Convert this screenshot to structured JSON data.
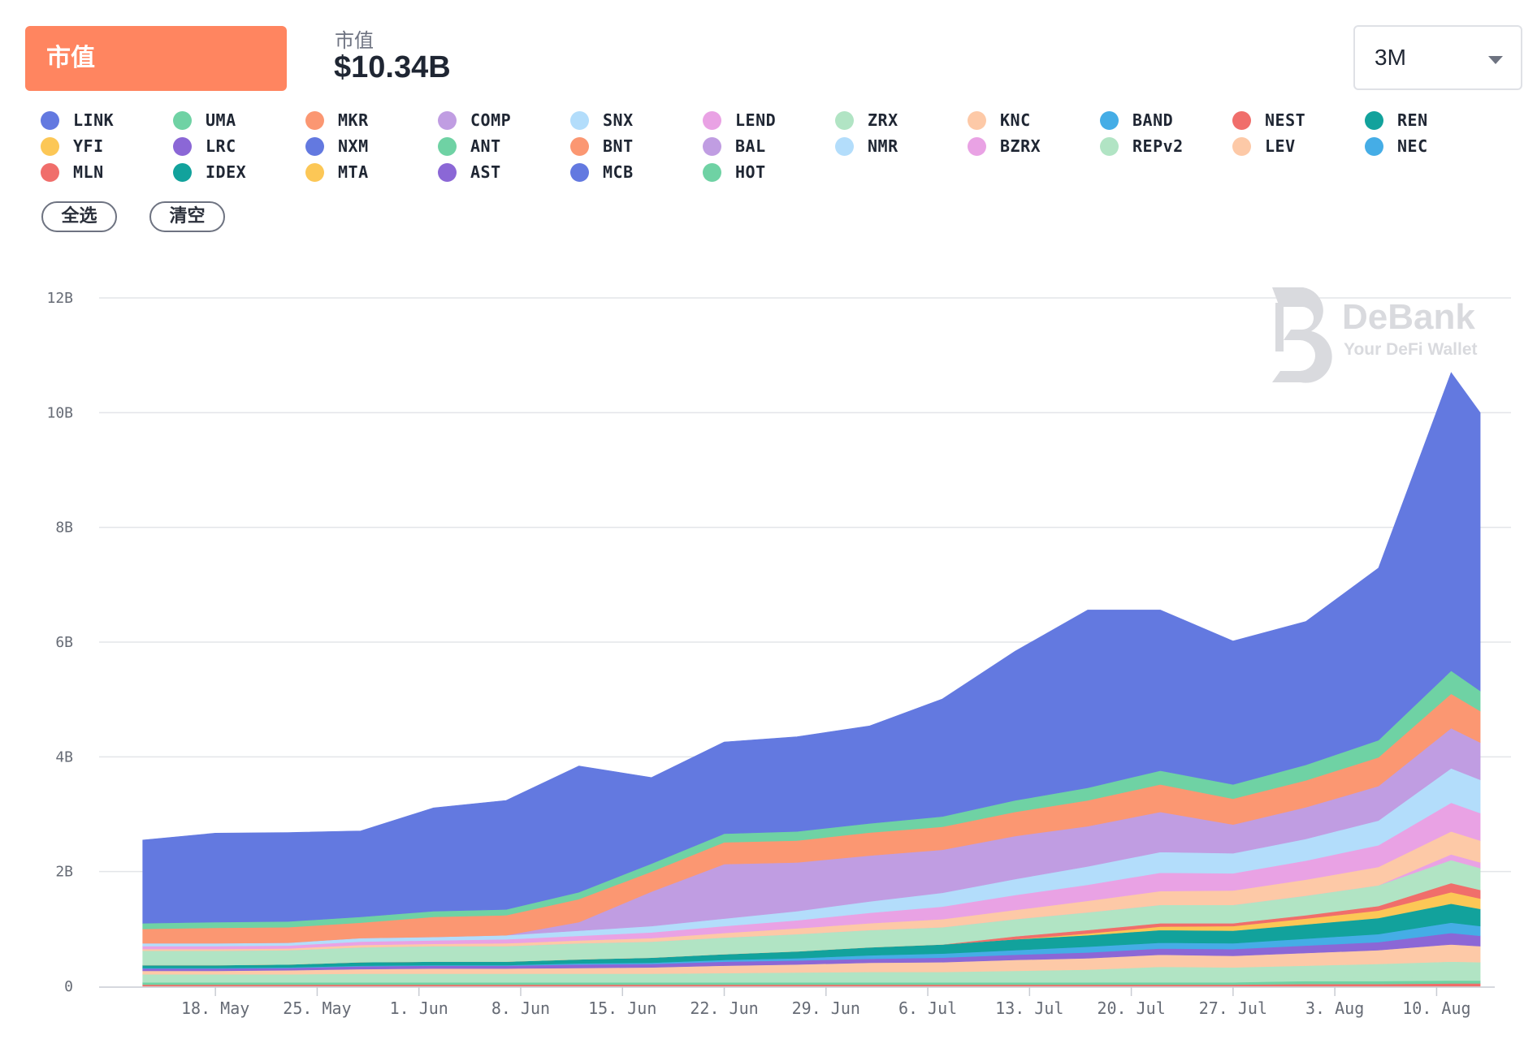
{
  "header": {
    "metric_tab": "市值",
    "summary_label": "市值",
    "summary_value": "$10.34B",
    "range_value": "3M"
  },
  "actions": {
    "select_all": "全选",
    "clear": "清空"
  },
  "watermark": {
    "brand": "DeBank",
    "tagline": "Your DeFi Wallet"
  },
  "legend": [
    {
      "label": "LINK",
      "color": "#6379e0"
    },
    {
      "label": "UMA",
      "color": "#6fd2a4"
    },
    {
      "label": "MKR",
      "color": "#fb9772"
    },
    {
      "label": "COMP",
      "color": "#c09de2"
    },
    {
      "label": "SNX",
      "color": "#b3ddfb"
    },
    {
      "label": "LEND",
      "color": "#e9a2e4"
    },
    {
      "label": "ZRX",
      "color": "#b1e4c4"
    },
    {
      "label": "KNC",
      "color": "#fdc9a7"
    },
    {
      "label": "BAND",
      "color": "#45ade6"
    },
    {
      "label": "NEST",
      "color": "#f06e6b"
    },
    {
      "label": "REN",
      "color": "#12a29c"
    },
    {
      "label": "YFI",
      "color": "#fcc756"
    },
    {
      "label": "LRC",
      "color": "#8b67d6"
    },
    {
      "label": "NXM",
      "color": "#6379e0"
    },
    {
      "label": "ANT",
      "color": "#6fd2a4"
    },
    {
      "label": "BNT",
      "color": "#fb9772"
    },
    {
      "label": "BAL",
      "color": "#c09de2"
    },
    {
      "label": "NMR",
      "color": "#b3ddfb"
    },
    {
      "label": "BZRX",
      "color": "#e9a2e4"
    },
    {
      "label": "REPv2",
      "color": "#b1e4c4"
    },
    {
      "label": "LEV",
      "color": "#fdc9a7"
    },
    {
      "label": "NEC",
      "color": "#45ade6"
    },
    {
      "label": "MLN",
      "color": "#f06e6b"
    },
    {
      "label": "IDEX",
      "color": "#12a29c"
    },
    {
      "label": "MTA",
      "color": "#fcc756"
    },
    {
      "label": "AST",
      "color": "#8b67d6"
    },
    {
      "label": "MCB",
      "color": "#6379e0"
    },
    {
      "label": "HOT",
      "color": "#6fd2a4"
    }
  ],
  "chart_data": {
    "type": "area",
    "stacked": true,
    "x": [
      "2020-05-13",
      "2020-05-18",
      "2020-05-23",
      "2020-05-28",
      "2020-06-02",
      "2020-06-07",
      "2020-06-12",
      "2020-06-17",
      "2020-06-22",
      "2020-06-27",
      "2020-07-02",
      "2020-07-07",
      "2020-07-12",
      "2020-07-17",
      "2020-07-22",
      "2020-07-27",
      "2020-08-01",
      "2020-08-06",
      "2020-08-11",
      "2020-08-13"
    ],
    "xticks": [
      "18. May",
      "25. May",
      "1. Jun",
      "8. Jun",
      "15. Jun",
      "22. Jun",
      "29. Jun",
      "6. Jul",
      "13. Jul",
      "20. Jul",
      "27. Jul",
      "3. Aug",
      "10. Aug"
    ],
    "xtick_dates": [
      "2020-05-18",
      "2020-05-25",
      "2020-06-01",
      "2020-06-08",
      "2020-06-15",
      "2020-06-22",
      "2020-06-29",
      "2020-07-06",
      "2020-07-13",
      "2020-07-20",
      "2020-07-27",
      "2020-08-03",
      "2020-08-10"
    ],
    "yticks": [
      "0",
      "2B",
      "4B",
      "6B",
      "8B",
      "10B",
      "12B"
    ],
    "ylim": [
      0,
      12
    ],
    "yunit": "B",
    "grid": true,
    "series": [
      {
        "name": "MLN",
        "color": "#f06e6b",
        "values": [
          0.03,
          0.03,
          0.03,
          0.03,
          0.03,
          0.03,
          0.03,
          0.03,
          0.03,
          0.03,
          0.03,
          0.03,
          0.03,
          0.03,
          0.03,
          0.03,
          0.04,
          0.04,
          0.05,
          0.05
        ]
      },
      {
        "name": "HOT",
        "color": "#6fd2a4",
        "values": [
          0.04,
          0.04,
          0.04,
          0.04,
          0.04,
          0.04,
          0.04,
          0.04,
          0.04,
          0.04,
          0.04,
          0.04,
          0.04,
          0.04,
          0.04,
          0.04,
          0.05,
          0.05,
          0.05,
          0.05
        ]
      },
      {
        "name": "REPv2",
        "color": "#b1e4c4",
        "values": [
          0.0,
          0.0,
          0.0,
          0.0,
          0.0,
          0.0,
          0.0,
          0.0,
          0.0,
          0.0,
          0.0,
          0.0,
          0.0,
          0.0,
          0.05,
          0.05,
          0.05,
          0.06,
          0.07,
          0.07
        ]
      },
      {
        "name": "ZRX",
        "color": "#b1e4c4",
        "values": [
          0.14,
          0.14,
          0.14,
          0.15,
          0.15,
          0.15,
          0.15,
          0.15,
          0.16,
          0.17,
          0.18,
          0.18,
          0.2,
          0.22,
          0.22,
          0.21,
          0.22,
          0.24,
          0.26,
          0.25
        ]
      },
      {
        "name": "KNC",
        "color": "#fdc9a7",
        "values": [
          0.06,
          0.06,
          0.07,
          0.08,
          0.09,
          0.09,
          0.1,
          0.11,
          0.13,
          0.14,
          0.16,
          0.17,
          0.19,
          0.2,
          0.21,
          0.2,
          0.22,
          0.24,
          0.3,
          0.28
        ]
      },
      {
        "name": "LRC",
        "color": "#8b67d6",
        "values": [
          0.04,
          0.04,
          0.04,
          0.05,
          0.05,
          0.05,
          0.06,
          0.06,
          0.07,
          0.07,
          0.07,
          0.08,
          0.09,
          0.1,
          0.11,
          0.12,
          0.13,
          0.14,
          0.2,
          0.18
        ]
      },
      {
        "name": "BAND",
        "color": "#45ade6",
        "values": [
          0.01,
          0.01,
          0.01,
          0.01,
          0.01,
          0.01,
          0.02,
          0.02,
          0.03,
          0.04,
          0.06,
          0.07,
          0.08,
          0.1,
          0.1,
          0.1,
          0.12,
          0.14,
          0.18,
          0.17
        ]
      },
      {
        "name": "REN",
        "color": "#12a29c",
        "values": [
          0.05,
          0.05,
          0.05,
          0.06,
          0.06,
          0.06,
          0.07,
          0.09,
          0.1,
          0.12,
          0.14,
          0.16,
          0.19,
          0.2,
          0.22,
          0.22,
          0.25,
          0.28,
          0.33,
          0.3
        ]
      },
      {
        "name": "YFI",
        "color": "#fcc756",
        "values": [
          0.0,
          0.0,
          0.0,
          0.0,
          0.0,
          0.0,
          0.0,
          0.0,
          0.0,
          0.0,
          0.0,
          0.0,
          0.0,
          0.03,
          0.06,
          0.08,
          0.1,
          0.13,
          0.2,
          0.18
        ]
      },
      {
        "name": "NEST",
        "color": "#f06e6b",
        "values": [
          0.0,
          0.0,
          0.0,
          0.0,
          0.0,
          0.0,
          0.0,
          0.0,
          0.0,
          0.0,
          0.0,
          0.0,
          0.05,
          0.06,
          0.06,
          0.05,
          0.06,
          0.08,
          0.16,
          0.15
        ]
      },
      {
        "name": "ZRX",
        "color": "#b1e4c4",
        "values": [
          0.25,
          0.25,
          0.25,
          0.26,
          0.27,
          0.27,
          0.28,
          0.28,
          0.29,
          0.3,
          0.3,
          0.3,
          0.3,
          0.31,
          0.32,
          0.32,
          0.34,
          0.36,
          0.4,
          0.38
        ]
      },
      {
        "name": "BZRX",
        "color": "#e9a2e4",
        "values": [
          0.0,
          0.0,
          0.0,
          0.0,
          0.0,
          0.0,
          0.0,
          0.0,
          0.0,
          0.0,
          0.0,
          0.0,
          0.0,
          0.0,
          0.0,
          0.0,
          0.0,
          0.0,
          0.1,
          0.1
        ]
      },
      {
        "name": "KNC",
        "color": "#fdc9a7",
        "values": [
          0.03,
          0.03,
          0.03,
          0.04,
          0.04,
          0.05,
          0.05,
          0.06,
          0.08,
          0.1,
          0.12,
          0.14,
          0.16,
          0.2,
          0.24,
          0.25,
          0.28,
          0.32,
          0.4,
          0.38
        ]
      },
      {
        "name": "LEND",
        "color": "#e9a2e4",
        "values": [
          0.05,
          0.05,
          0.05,
          0.06,
          0.06,
          0.07,
          0.08,
          0.1,
          0.12,
          0.14,
          0.18,
          0.22,
          0.26,
          0.28,
          0.32,
          0.3,
          0.33,
          0.38,
          0.5,
          0.48
        ]
      },
      {
        "name": "SNX",
        "color": "#b3ddfb",
        "values": [
          0.05,
          0.05,
          0.05,
          0.06,
          0.06,
          0.07,
          0.09,
          0.11,
          0.13,
          0.16,
          0.2,
          0.24,
          0.28,
          0.32,
          0.36,
          0.35,
          0.38,
          0.43,
          0.6,
          0.58
        ]
      },
      {
        "name": "COMP",
        "color": "#c09de2",
        "values": [
          0.0,
          0.0,
          0.0,
          0.0,
          0.0,
          0.0,
          0.15,
          0.6,
          0.95,
          0.85,
          0.8,
          0.75,
          0.75,
          0.7,
          0.7,
          0.5,
          0.55,
          0.6,
          0.7,
          0.65
        ]
      },
      {
        "name": "MKR",
        "color": "#fb9772",
        "values": [
          0.25,
          0.27,
          0.27,
          0.27,
          0.35,
          0.35,
          0.4,
          0.35,
          0.38,
          0.38,
          0.4,
          0.4,
          0.42,
          0.45,
          0.48,
          0.45,
          0.47,
          0.5,
          0.6,
          0.55
        ]
      },
      {
        "name": "UMA",
        "color": "#6fd2a4",
        "values": [
          0.1,
          0.1,
          0.1,
          0.1,
          0.1,
          0.1,
          0.12,
          0.14,
          0.15,
          0.16,
          0.16,
          0.18,
          0.2,
          0.22,
          0.24,
          0.25,
          0.27,
          0.3,
          0.4,
          0.35
        ]
      },
      {
        "name": "LINK",
        "color": "#6379e0",
        "values": [
          1.45,
          1.55,
          1.55,
          1.5,
          1.8,
          1.9,
          2.2,
          1.5,
          1.6,
          1.65,
          1.7,
          2.05,
          2.6,
          3.1,
          2.8,
          2.5,
          2.5,
          3.0,
          5.2,
          4.85
        ]
      }
    ]
  }
}
